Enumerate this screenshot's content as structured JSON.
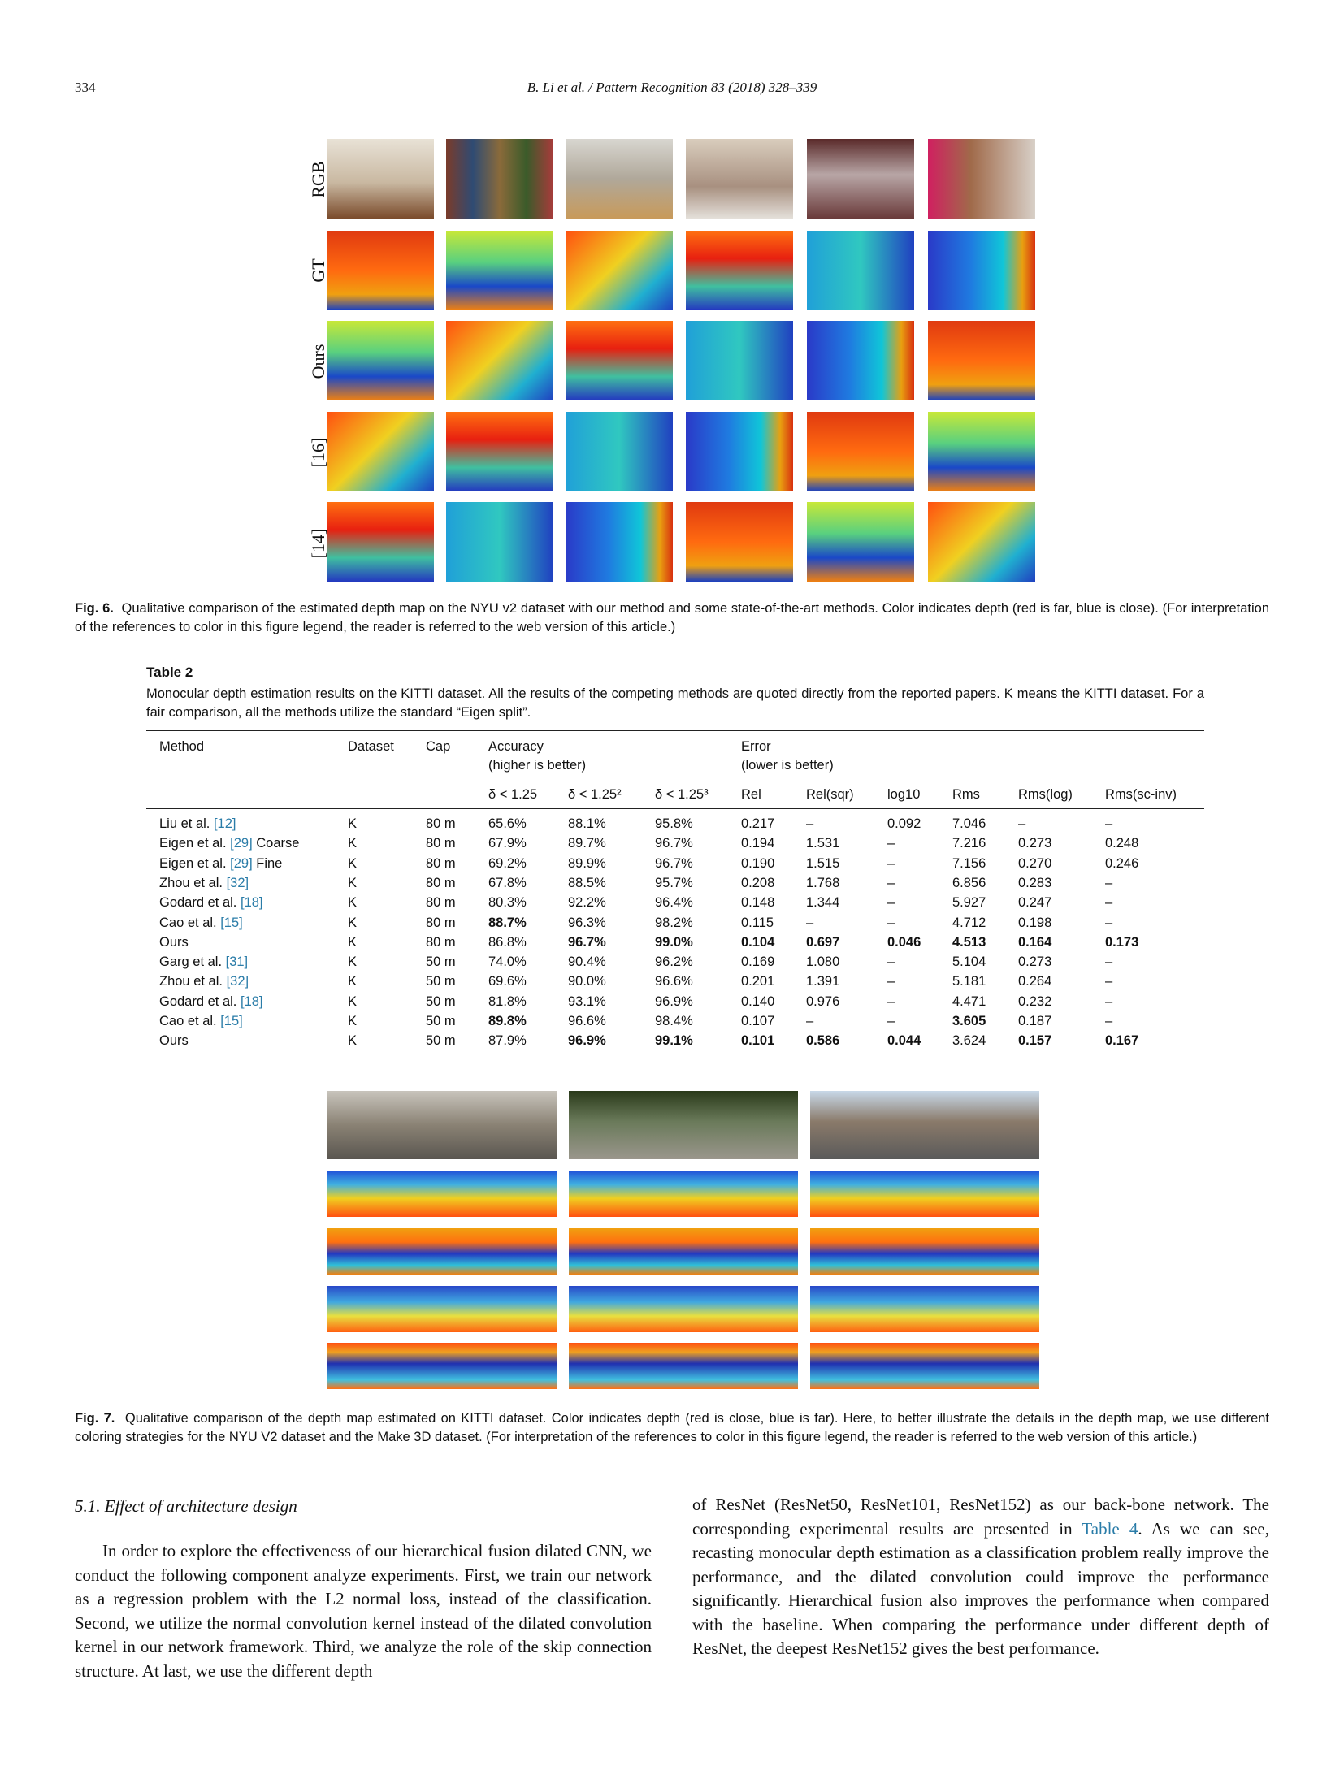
{
  "header": {
    "page_number": "334",
    "running_head": "B. Li et al. / Pattern Recognition 83 (2018) 328–339"
  },
  "figure6": {
    "row_labels": [
      "RGB",
      "GT",
      "Ours",
      "[16]",
      "[14]"
    ],
    "caption_label": "Fig. 6.",
    "caption_text": "Qualitative comparison of the estimated depth map on the NYU v2 dataset with our method and some state-of-the-art methods. Color indicates depth (red is far, blue is close). (For interpretation of the references to color in this figure legend, the reader is referred to the web version of this article.)"
  },
  "table2": {
    "title": "Table 2",
    "caption": "Monocular depth estimation results on the KITTI dataset. All the results of the competing methods are quoted directly from the reported papers. K means the KITTI dataset. For a fair comparison, all the methods utilize the standard “Eigen split”.",
    "headers": {
      "method": "Method",
      "dataset": "Dataset",
      "cap": "Cap",
      "accuracy": "Accuracy",
      "accuracy_note": "(higher is better)",
      "error": "Error",
      "error_note": "(lower is better)",
      "sub": [
        "δ < 1.25",
        "δ < 1.25²",
        "δ < 1.25³",
        "Rel",
        "Rel(sqr)",
        "log10",
        "Rms",
        "Rms(log)",
        "Rms(sc-inv)"
      ]
    },
    "rows": [
      {
        "method": "Liu et al.",
        "ref": "[12]",
        "suffix": "",
        "dataset": "K",
        "cap": "80 m",
        "vals": [
          "65.6%",
          "88.1%",
          "95.8%",
          "0.217",
          "–",
          "0.092",
          "7.046",
          "–",
          "–"
        ],
        "bold": []
      },
      {
        "method": "Eigen et al.",
        "ref": "[29]",
        "suffix": " Coarse",
        "dataset": "K",
        "cap": "80 m",
        "vals": [
          "67.9%",
          "89.7%",
          "96.7%",
          "0.194",
          "1.531",
          "–",
          "7.216",
          "0.273",
          "0.248"
        ],
        "bold": []
      },
      {
        "method": "Eigen et al.",
        "ref": "[29]",
        "suffix": " Fine",
        "dataset": "K",
        "cap": "80 m",
        "vals": [
          "69.2%",
          "89.9%",
          "96.7%",
          "0.190",
          "1.515",
          "–",
          "7.156",
          "0.270",
          "0.246"
        ],
        "bold": []
      },
      {
        "method": "Zhou et al.",
        "ref": "[32]",
        "suffix": "",
        "dataset": "K",
        "cap": "80 m",
        "vals": [
          "67.8%",
          "88.5%",
          "95.7%",
          "0.208",
          "1.768",
          "–",
          "6.856",
          "0.283",
          "–"
        ],
        "bold": []
      },
      {
        "method": "Godard et al.",
        "ref": "[18]",
        "suffix": "",
        "dataset": "K",
        "cap": "80 m",
        "vals": [
          "80.3%",
          "92.2%",
          "96.4%",
          "0.148",
          "1.344",
          "–",
          "5.927",
          "0.247",
          "–"
        ],
        "bold": []
      },
      {
        "method": "Cao et al.",
        "ref": "[15]",
        "suffix": "",
        "dataset": "K",
        "cap": "80 m",
        "vals": [
          "88.7%",
          "96.3%",
          "98.2%",
          "0.115",
          "–",
          "–",
          "4.712",
          "0.198",
          "–"
        ],
        "bold": [
          0
        ]
      },
      {
        "method": "Ours",
        "ref": "",
        "suffix": "",
        "dataset": "K",
        "cap": "80 m",
        "vals": [
          "86.8%",
          "96.7%",
          "99.0%",
          "0.104",
          "0.697",
          "0.046",
          "4.513",
          "0.164",
          "0.173"
        ],
        "bold": [
          1,
          2,
          3,
          4,
          5,
          6,
          7,
          8
        ]
      },
      {
        "method": "Garg et al.",
        "ref": "[31]",
        "suffix": "",
        "dataset": "K",
        "cap": "50 m",
        "vals": [
          "74.0%",
          "90.4%",
          "96.2%",
          "0.169",
          "1.080",
          "–",
          "5.104",
          "0.273",
          "–"
        ],
        "bold": []
      },
      {
        "method": "Zhou et al.",
        "ref": "[32]",
        "suffix": "",
        "dataset": "K",
        "cap": "50 m",
        "vals": [
          "69.6%",
          "90.0%",
          "96.6%",
          "0.201",
          "1.391",
          "–",
          "5.181",
          "0.264",
          "–"
        ],
        "bold": []
      },
      {
        "method": "Godard et al.",
        "ref": "[18]",
        "suffix": "",
        "dataset": "K",
        "cap": "50 m",
        "vals": [
          "81.8%",
          "93.1%",
          "96.9%",
          "0.140",
          "0.976",
          "–",
          "4.471",
          "0.232",
          "–"
        ],
        "bold": []
      },
      {
        "method": "Cao et al.",
        "ref": "[15]",
        "suffix": "",
        "dataset": "K",
        "cap": "50 m",
        "vals": [
          "89.8%",
          "96.6%",
          "98.4%",
          "0.107",
          "–",
          "–",
          "3.605",
          "0.187",
          "–"
        ],
        "bold": [
          0,
          6
        ]
      },
      {
        "method": "Ours",
        "ref": "",
        "suffix": "",
        "dataset": "K",
        "cap": "50 m",
        "vals": [
          "87.9%",
          "96.9%",
          "99.1%",
          "0.101",
          "0.586",
          "0.044",
          "3.624",
          "0.157",
          "0.167"
        ],
        "bold": [
          1,
          2,
          3,
          4,
          5,
          7,
          8
        ]
      }
    ]
  },
  "figure7": {
    "caption_label": "Fig. 7.",
    "caption_text": "Qualitative comparison of the depth map estimated on KITTI dataset. Color indicates depth (red is close, blue is far). Here, to better illustrate the details in the depth map, we use different coloring strategies for the NYU V2 dataset and the Make 3D dataset. (For interpretation of the references to color in this figure legend, the reader is referred to the web version of this article.)"
  },
  "section": {
    "heading": "5.1. Effect of architecture design",
    "left_paragraph": "In order to explore the effectiveness of our hierarchical fusion dilated CNN, we conduct the following component analyze experiments. First, we train our network as a regression problem with the L2 normal loss, instead of the classification. Second, we utilize the normal convolution kernel instead of the dilated convolution kernel in our network framework. Third, we analyze the role of the skip connection structure. At last, we use the different depth",
    "right_paragraph_a": "of ResNet (ResNet50, ResNet101, ResNet152) as our back-bone network. The corresponding experimental results are presented in ",
    "right_paragraph_link": "Table 4",
    "right_paragraph_b": ". As we can see, recasting monocular depth estimation as a classification problem really improve the performance, and the dilated convolution could improve the performance significantly. Hierarchical fusion also improves the performance when compared with the baseline. When comparing the performance under different depth of ResNet, the deepest ResNet152 gives the best performance."
  }
}
